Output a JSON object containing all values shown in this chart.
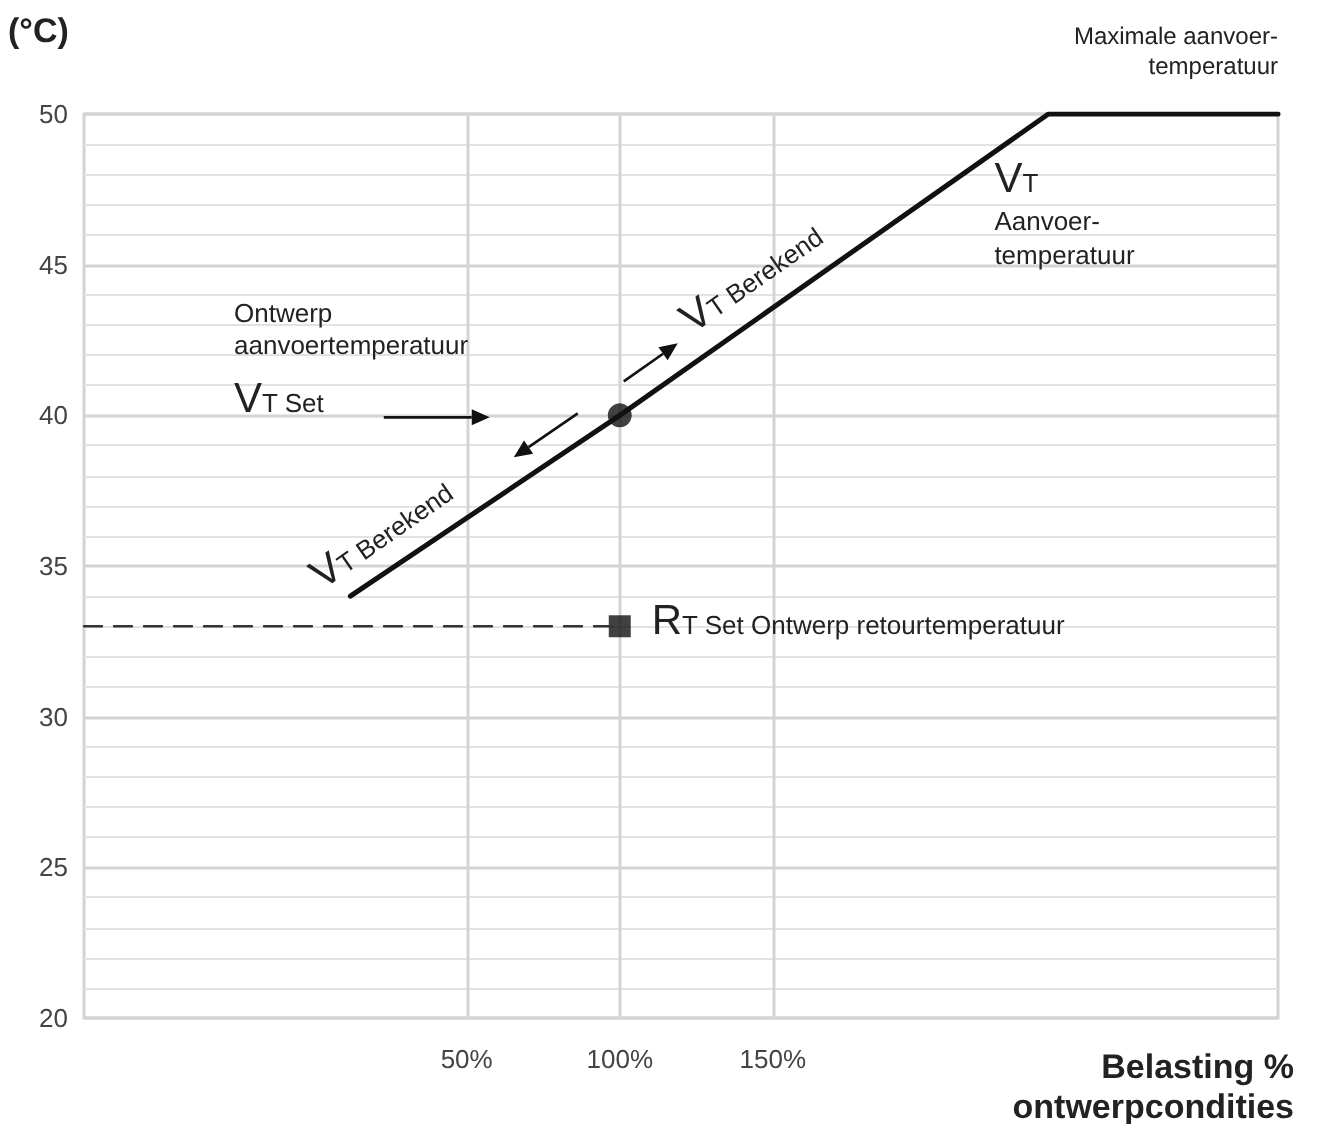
{
  "chart_data": {
    "type": "line",
    "ylabel": "(°C)",
    "xlabel": "Belasting %\nontwerpcondities",
    "xlim": [
      -75,
      315
    ],
    "xticks": [
      {
        "value": 50,
        "label": "50%"
      },
      {
        "value": 100,
        "label": "100%"
      },
      {
        "value": 150,
        "label": "150%"
      }
    ],
    "ylim": [
      20,
      50
    ],
    "yticks": [
      20,
      25,
      30,
      35,
      40,
      45,
      50
    ],
    "grid": true,
    "marker": "none",
    "series": [
      {
        "color": "#111111",
        "x": [
          12,
          100,
          240,
          315
        ],
        "values": [
          34,
          40,
          50,
          50
        ],
        "line_style": "solid"
      },
      {
        "color": "#333333",
        "x": [
          -75,
          100
        ],
        "values": [
          33,
          33
        ],
        "line_style": "dashed"
      },
      {
        "type": "scatter",
        "color": "#111111",
        "x": [
          100
        ],
        "values": [
          40
        ],
        "marker": "circle"
      },
      {
        "type": "scatter",
        "color": "#111111",
        "x": [
          100
        ],
        "values": [
          33
        ],
        "marker": "square"
      }
    ],
    "annotations": [
      {
        "text": "Maximale aanvoer-\ntemperatuur",
        "x": 315,
        "y": 50
      },
      {
        "text": "V$_{T}$\nAanvoer-\ntemperatuur",
        "x": 240,
        "y": 50
      },
      "Ontwerp\naanvoertemperatuur",
      "V$_{T}$ Set",
      {
        "text": "V$_{T}$ Berekend",
        "x": 30,
        "y": 35
      },
      {
        "text": "V$_{T}$ Berekend",
        "x": 150,
        "y": 43.5
      },
      {
        "text": "R$_{T}$ Set Ontwerp retourtemperatuur",
        "x": 100,
        "y": 33
      }
    ]
  }
}
